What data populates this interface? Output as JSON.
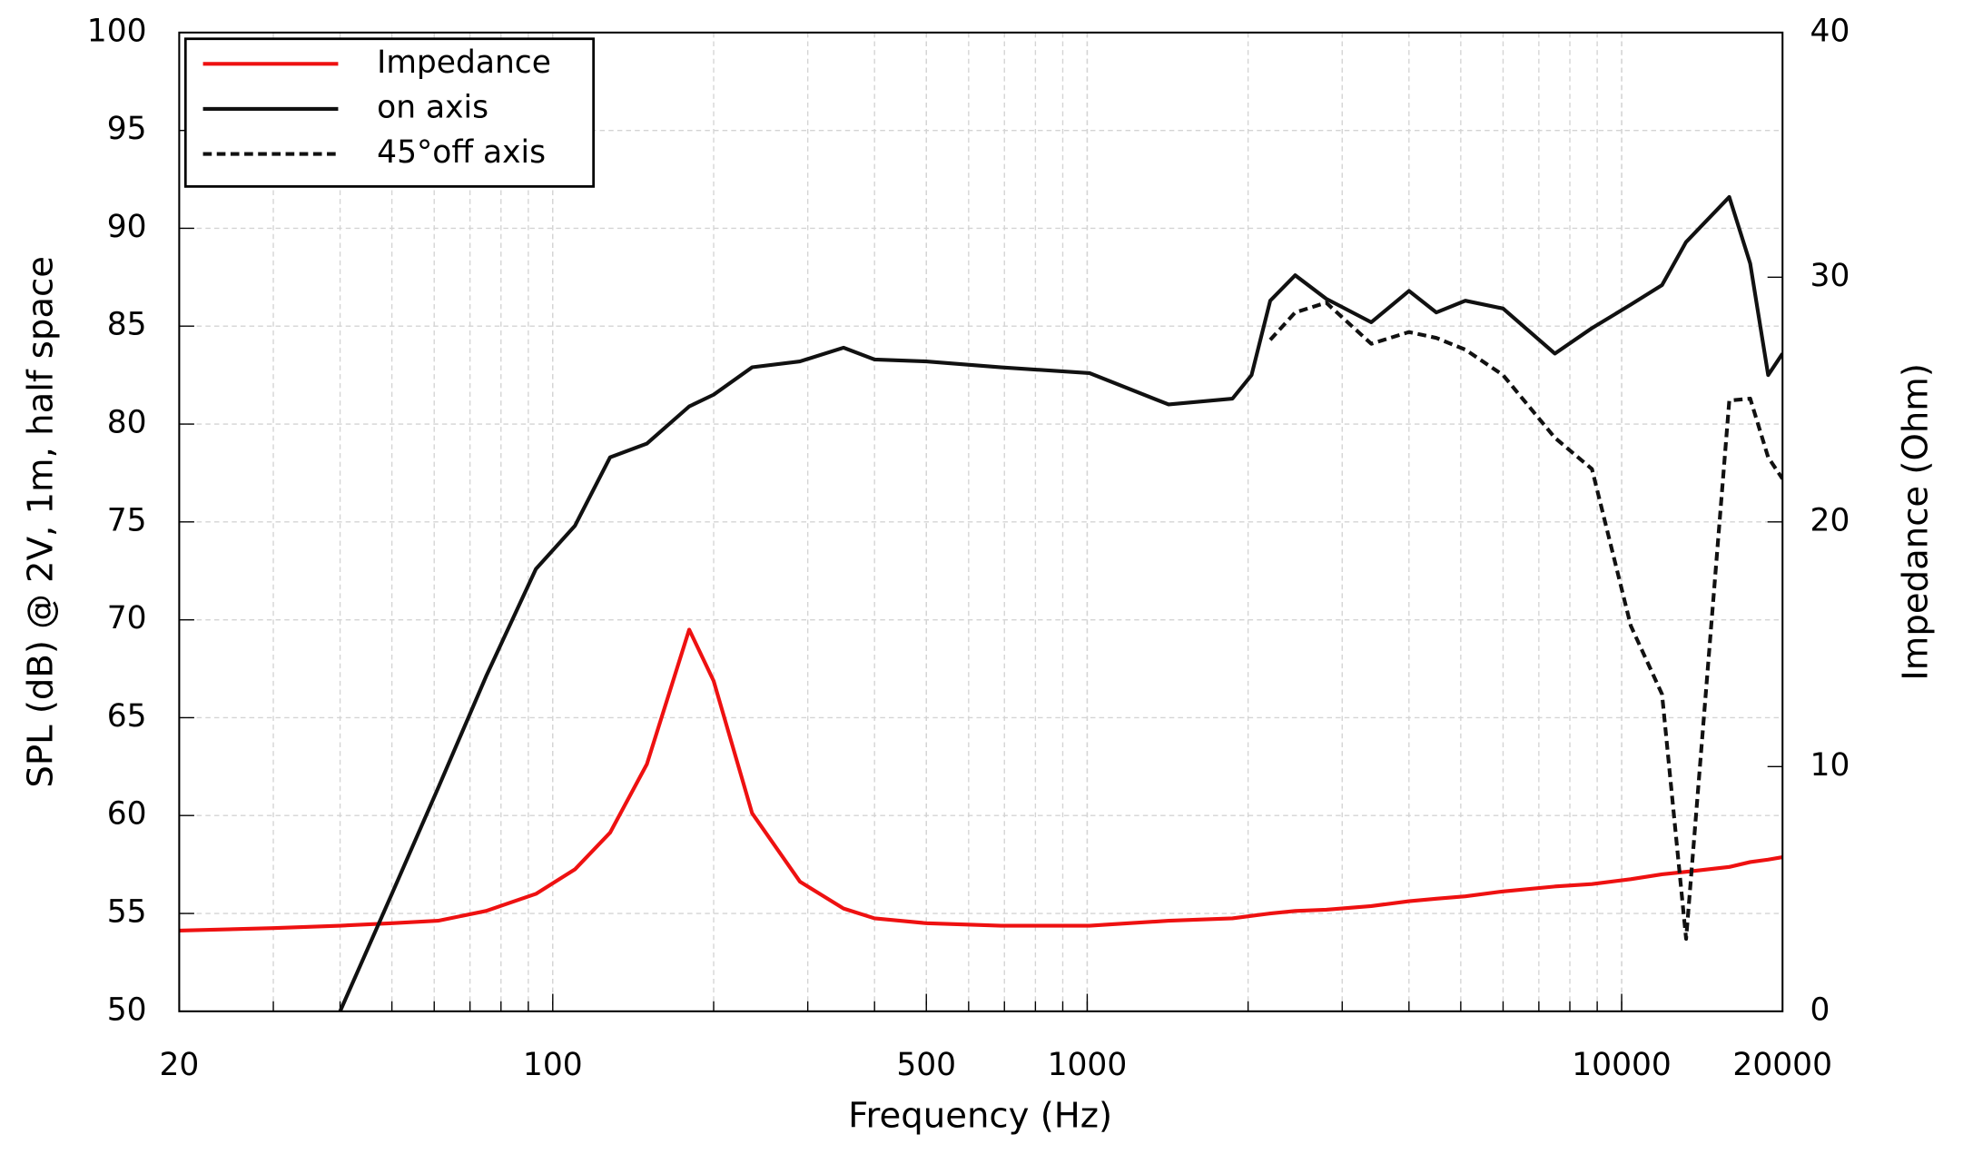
{
  "chart_data": {
    "type": "line",
    "x_label": "Frequency (Hz)",
    "y_label": "SPL (dB) @ 2V, 1m, half space",
    "y2_label": "Impedance (Ohm)",
    "x_log": true,
    "grid": true,
    "legend": "upper left",
    "xlim": [
      20,
      20000
    ],
    "xticks": [
      20,
      100,
      500,
      1000,
      10000,
      20000
    ],
    "ylim": [
      50,
      100
    ],
    "yticks": [
      50,
      55,
      60,
      65,
      70,
      75,
      80,
      85,
      90,
      95,
      100
    ],
    "y2lim": [
      0,
      40
    ],
    "y2ticks": [
      0,
      10,
      20,
      30,
      40
    ],
    "x": [
      20,
      30,
      40,
      50,
      61,
      75,
      93,
      110,
      128,
      150,
      180,
      200,
      236,
      290,
      350,
      400,
      500,
      690,
      1010,
      1420,
      1870,
      2030,
      2200,
      2450,
      2800,
      3400,
      4000,
      4500,
      5100,
      6000,
      7500,
      8800,
      10400,
      11900,
      13200,
      15900,
      17400,
      18800,
      20000
    ],
    "series": [
      {
        "name": "Impedance",
        "color": "#ee1111",
        "dash": false,
        "axis": "y2",
        "values": [
          3.3,
          3.4,
          3.5,
          3.6,
          3.7,
          4.1,
          4.8,
          5.8,
          7.3,
          10.1,
          15.6,
          13.5,
          8.1,
          5.3,
          4.2,
          3.8,
          3.6,
          3.5,
          3.5,
          3.7,
          3.8,
          3.9,
          4.0,
          4.1,
          4.15,
          4.3,
          4.5,
          4.6,
          4.7,
          4.9,
          5.1,
          5.2,
          5.4,
          5.6,
          5.7,
          5.9,
          6.1,
          6.2,
          6.3
        ]
      },
      {
        "name": "on axis",
        "color": "#111111",
        "dash": false,
        "values": [
          null,
          null,
          50,
          56.0,
          61.4,
          67.1,
          72.6,
          74.8,
          78.3,
          79.0,
          80.9,
          81.5,
          82.9,
          83.2,
          83.9,
          83.3,
          83.2,
          82.9,
          82.6,
          81.0,
          81.3,
          82.5,
          86.3,
          87.6,
          86.4,
          85.2,
          86.8,
          85.7,
          86.3,
          85.9,
          83.6,
          84.9,
          86.1,
          87.1,
          89.3,
          91.6,
          88.2,
          82.5,
          83.6
        ]
      },
      {
        "name": "45°off axis",
        "color": "#111111",
        "dash": true,
        "values": [
          null,
          null,
          null,
          null,
          null,
          null,
          null,
          null,
          null,
          null,
          null,
          null,
          null,
          null,
          null,
          null,
          null,
          null,
          null,
          null,
          null,
          null,
          84.3,
          85.7,
          86.2,
          84.1,
          84.7,
          84.4,
          83.8,
          82.5,
          79.3,
          77.7,
          69.7,
          66.2,
          53.7,
          81.2,
          81.3,
          78.3,
          77.2
        ]
      }
    ]
  }
}
